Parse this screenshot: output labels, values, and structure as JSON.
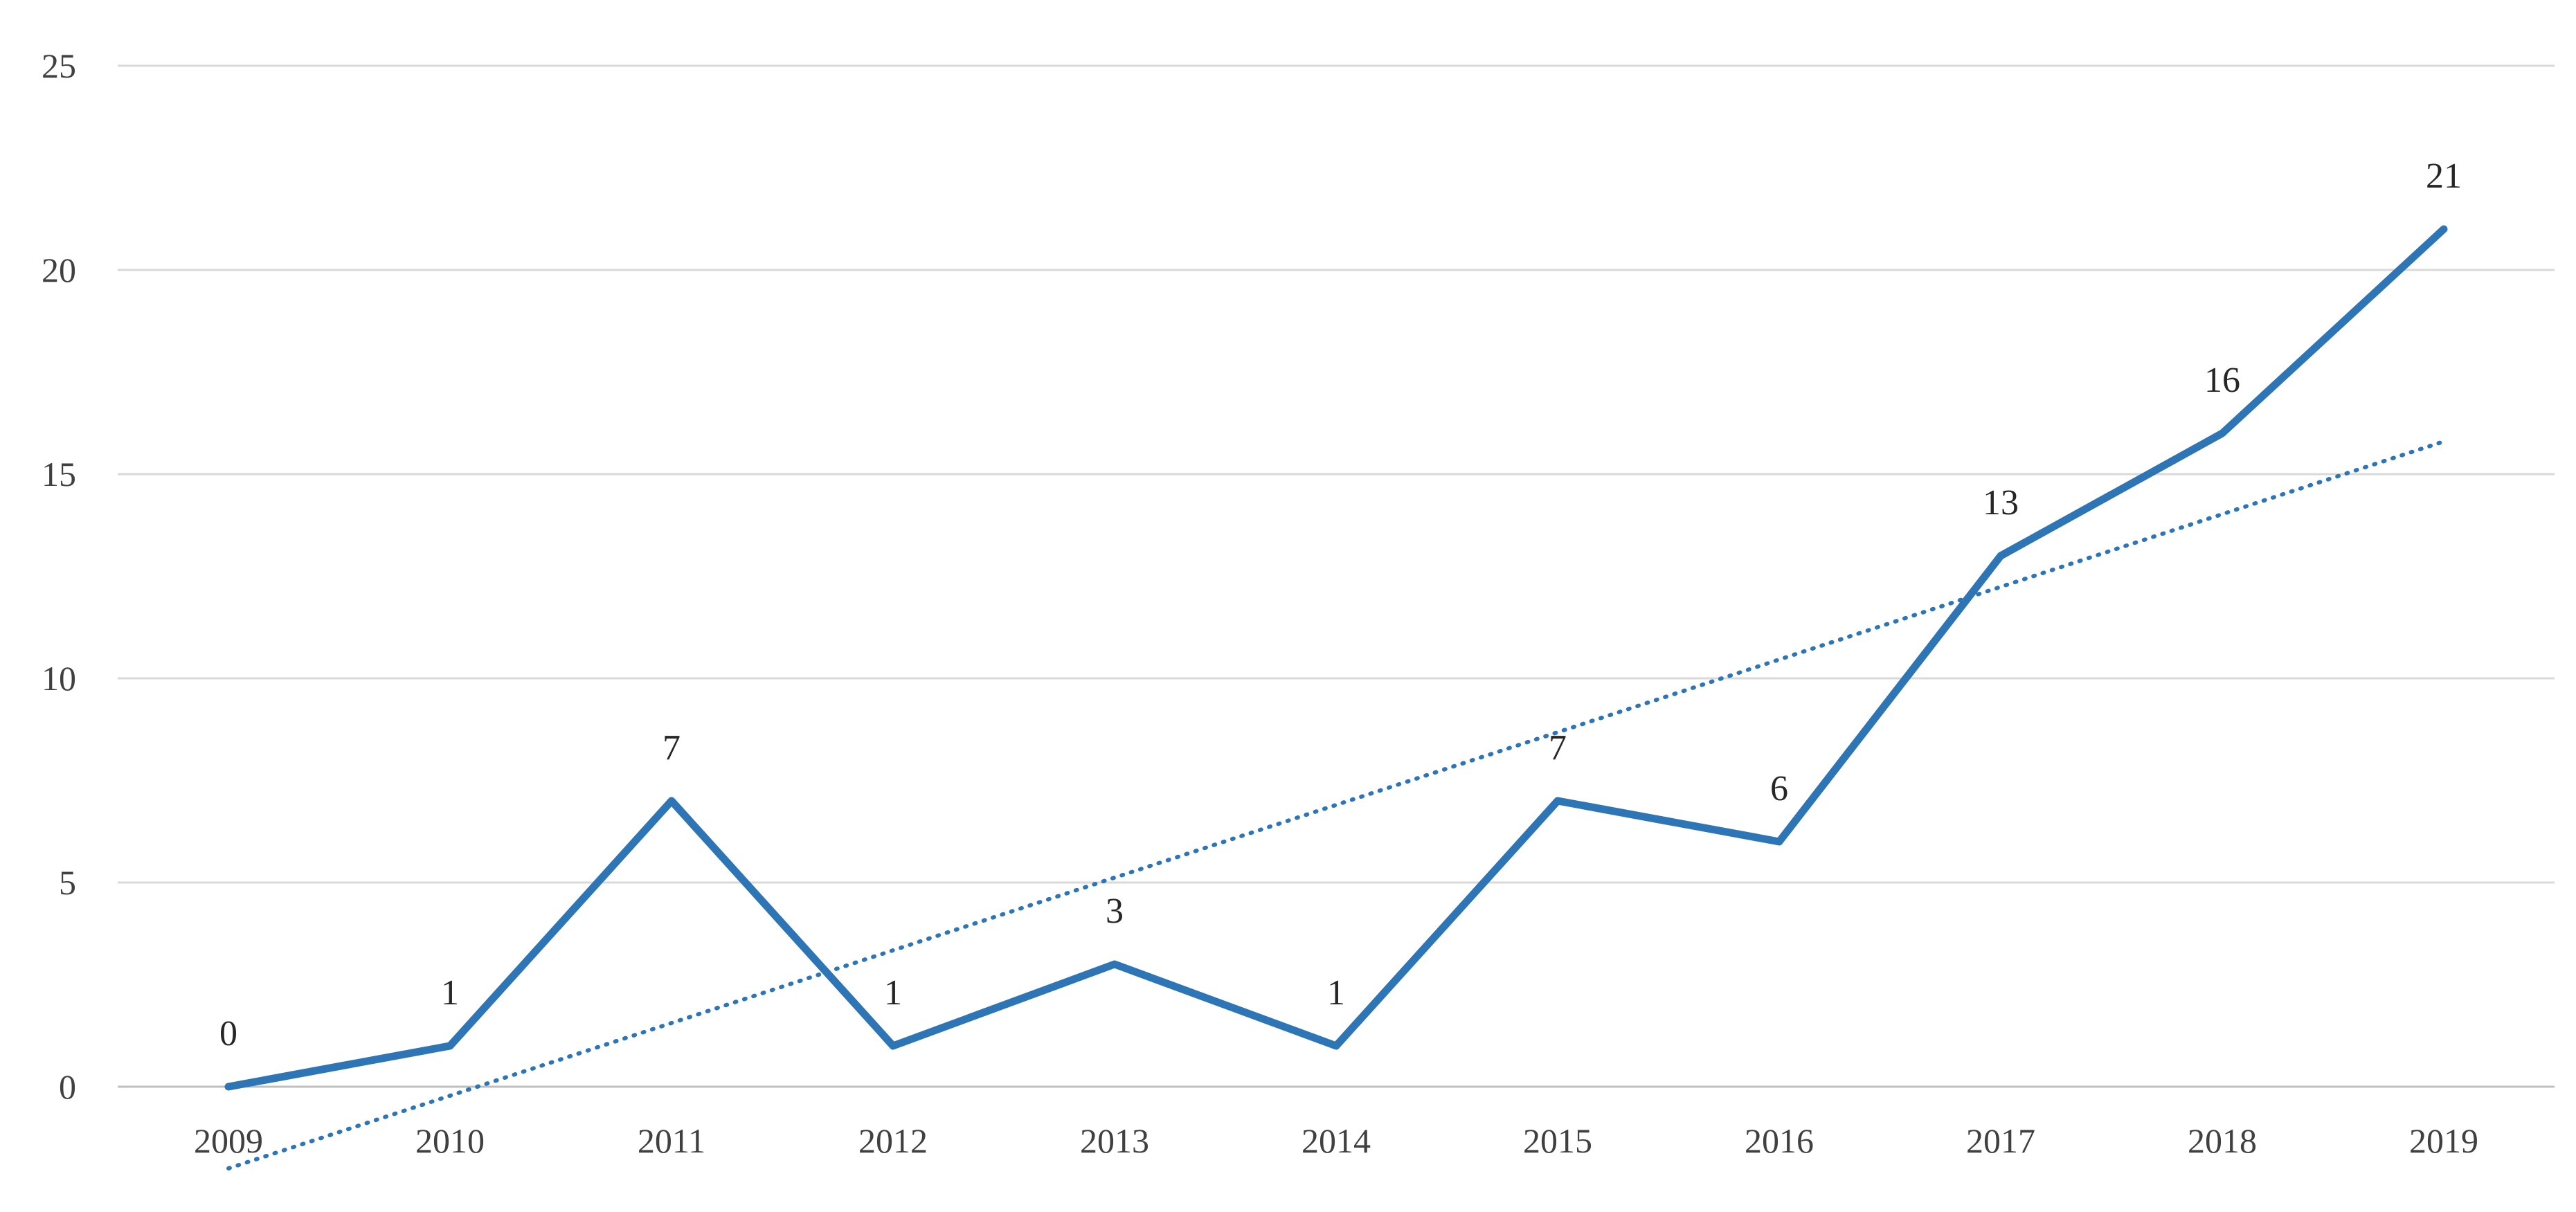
{
  "chart_data": {
    "type": "line",
    "title": "",
    "xlabel": "",
    "ylabel": "",
    "categories": [
      "2009",
      "2010",
      "2011",
      "2012",
      "2013",
      "2014",
      "2015",
      "2016",
      "2017",
      "2018",
      "2019"
    ],
    "series": [
      {
        "values": [
          0,
          1,
          7,
          1,
          3,
          1,
          7,
          6,
          13,
          16,
          21
        ],
        "data_labels": [
          "0",
          "1",
          "7",
          "1",
          "3",
          "1",
          "7",
          "6",
          "13",
          "16",
          "21"
        ],
        "color": "#2e75b6",
        "line_style": "solid"
      }
    ],
    "trendline": {
      "type": "linear",
      "start_value": -2.0,
      "end_value": 15.8,
      "color": "#2e75b6",
      "line_style": "dotted"
    },
    "ylim": [
      0,
      25
    ],
    "yticks": [
      "0",
      "5",
      "10",
      "15",
      "20",
      "25"
    ],
    "grid": true,
    "legend": "none"
  }
}
